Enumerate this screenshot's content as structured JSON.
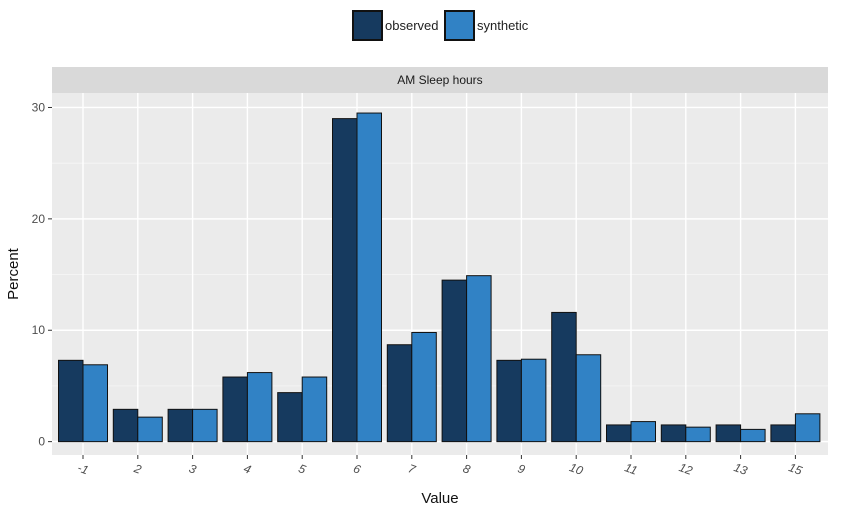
{
  "chart_data": {
    "type": "bar",
    "facet_title": "AM Sleep hours",
    "xlabel": "Value",
    "ylabel": "Percent",
    "categories": [
      "-1",
      "2",
      "3",
      "4",
      "5",
      "6",
      "7",
      "8",
      "9",
      "10",
      "11",
      "12",
      "13",
      "15"
    ],
    "series": [
      {
        "name": "observed",
        "color": "#163a5f",
        "values": [
          7.3,
          2.9,
          2.9,
          5.8,
          4.4,
          29.0,
          8.7,
          14.5,
          7.3,
          11.6,
          1.5,
          1.5,
          1.5,
          1.5
        ]
      },
      {
        "name": "synthetic",
        "color": "#3182c5",
        "values": [
          6.9,
          2.2,
          2.9,
          6.2,
          5.8,
          29.5,
          9.8,
          14.9,
          7.4,
          7.8,
          1.8,
          1.3,
          1.1,
          2.5
        ]
      }
    ],
    "ylim": [
      -1.2,
      31.3
    ],
    "yticks": [
      0,
      10,
      20,
      30
    ],
    "grid": true,
    "legend_position": "top"
  }
}
